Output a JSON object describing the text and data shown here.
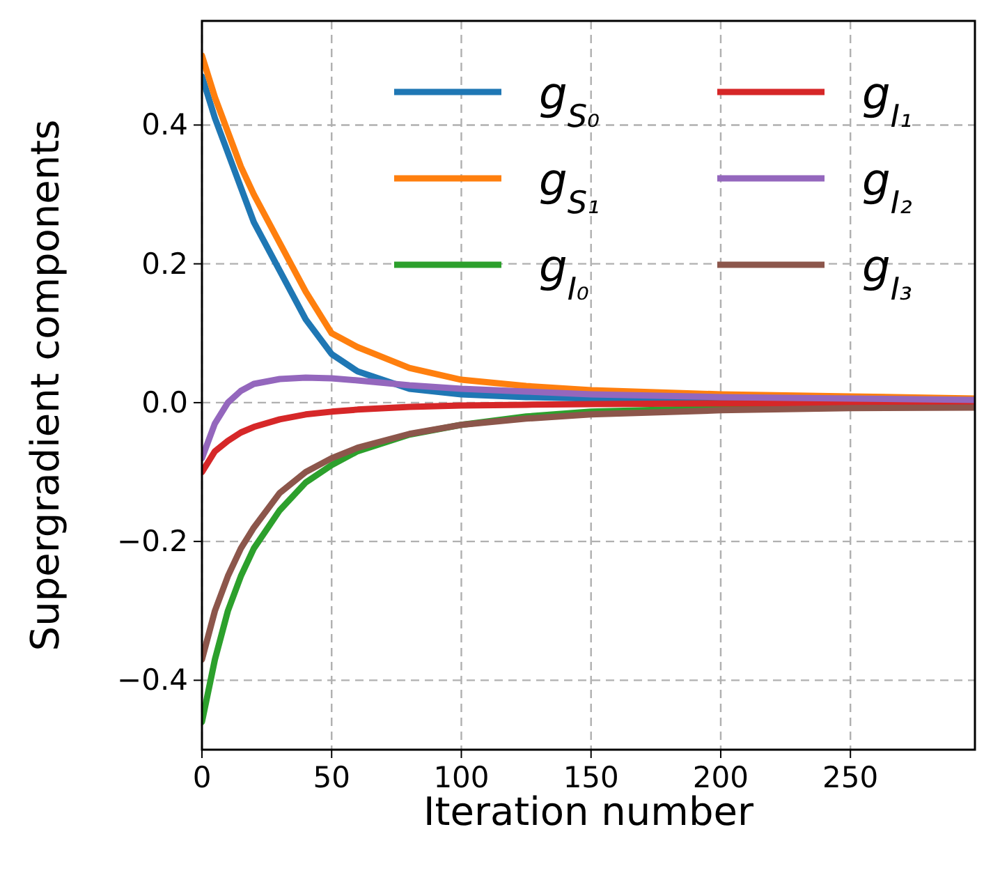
{
  "chart_data": {
    "type": "line",
    "xlabel": "Iteration number",
    "ylabel": "Supergradient components",
    "x": [
      0,
      5,
      10,
      15,
      20,
      30,
      40,
      50,
      60,
      80,
      100,
      125,
      150,
      200,
      250,
      298
    ],
    "xlim": [
      0,
      298
    ],
    "ylim": [
      -0.5,
      0.55
    ],
    "xticks": [
      0,
      50,
      100,
      150,
      200,
      250
    ],
    "yticks": [
      {
        "value": -0.4,
        "label": "−0.4"
      },
      {
        "value": -0.2,
        "label": "−0.2"
      },
      {
        "value": 0,
        "label": "0.0"
      },
      {
        "value": 0.2,
        "label": "0.2"
      },
      {
        "value": 0.4,
        "label": "0.4"
      }
    ],
    "grid": true,
    "legend": "top right",
    "line_style": "solid",
    "marker": "none",
    "series": [
      {
        "name": "g$_{S₀}$",
        "color": "#1f77b4",
        "values": [
          0.47,
          0.41,
          0.36,
          0.31,
          0.26,
          0.19,
          0.12,
          0.07,
          0.045,
          0.02,
          0.012,
          0.008,
          0.006,
          0.004,
          0.003,
          0.002
        ]
      },
      {
        "name": "g$_{S₁}$",
        "color": "#ff7f0e",
        "values": [
          0.5,
          0.44,
          0.39,
          0.34,
          0.3,
          0.23,
          0.16,
          0.1,
          0.08,
          0.05,
          0.033,
          0.024,
          0.018,
          0.012,
          0.009,
          0.006
        ]
      },
      {
        "name": "g$_{I₀}$",
        "color": "#2ca02c",
        "values": [
          -0.46,
          -0.37,
          -0.3,
          -0.25,
          -0.21,
          -0.155,
          -0.115,
          -0.09,
          -0.07,
          -0.046,
          -0.032,
          -0.02,
          -0.013,
          -0.008,
          -0.005,
          -0.004
        ]
      },
      {
        "name": "g$_{I₁}$",
        "color": "#d62728",
        "values": [
          -0.1,
          -0.07,
          -0.055,
          -0.043,
          -0.035,
          -0.024,
          -0.017,
          -0.013,
          -0.01,
          -0.006,
          -0.004,
          -0.003,
          -0.002,
          -0.001,
          -0.001,
          -0.001
        ]
      },
      {
        "name": "g$_{I₂}$",
        "color": "#9467bd",
        "values": [
          -0.08,
          -0.03,
          0,
          0.017,
          0.027,
          0.034,
          0.036,
          0.035,
          0.032,
          0.025,
          0.02,
          0.016,
          0.012,
          0.008,
          0.006,
          0.004
        ]
      },
      {
        "name": "g$_{I₃}$",
        "color": "#8c564b",
        "values": [
          -0.37,
          -0.3,
          -0.25,
          -0.21,
          -0.18,
          -0.13,
          -0.1,
          -0.08,
          -0.065,
          -0.045,
          -0.032,
          -0.023,
          -0.017,
          -0.011,
          -0.008,
          -0.007
        ]
      }
    ]
  }
}
